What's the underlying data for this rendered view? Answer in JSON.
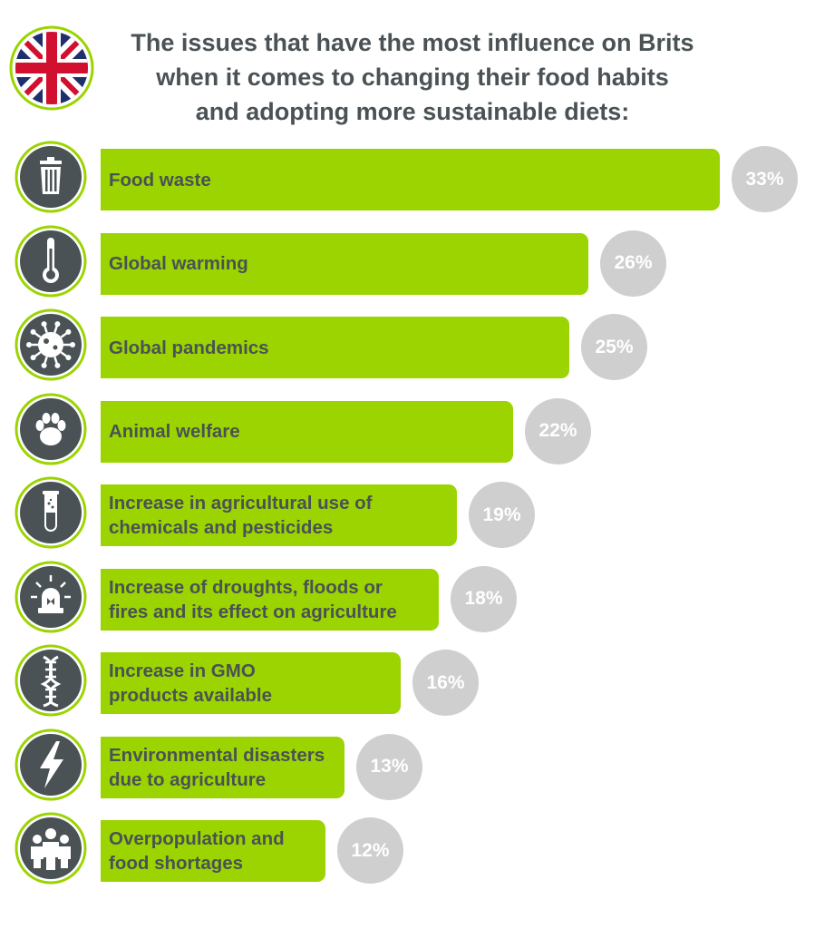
{
  "header": {
    "title_lines": [
      "The issues that have the most influence on Brits",
      "when it comes to changing their food habits",
      "and adopting more sustainable diets:"
    ],
    "flag_icon": "uk-flag-icon"
  },
  "colors": {
    "bar": "#9bd400",
    "text": "#4a5255",
    "badge": "#cfcfcf",
    "icon_fill": "#4a5255",
    "icon_ring": "#9bd400"
  },
  "chart_data": {
    "type": "bar",
    "orientation": "horizontal",
    "title": "The issues that have the most influence on Brits when it comes to changing their food habits and adopting more sustainable diets:",
    "unit": "%",
    "categories": [
      "Food waste",
      "Global warming",
      "Global pandemics",
      "Animal welfare",
      "Increase in agricultural use of chemicals and pesticides",
      "Increase of droughts, floods or fires and its effect on agriculture",
      "Increase in GMO products available",
      "Environmental disasters due to agriculture",
      "Overpopulation and food shortages"
    ],
    "values": [
      33,
      26,
      25,
      22,
      19,
      18,
      16,
      13,
      12
    ],
    "value_labels": [
      "33%",
      "26%",
      "25%",
      "22%",
      "19%",
      "18%",
      "16%",
      "13%",
      "12%"
    ],
    "icons": [
      "trash-icon",
      "thermometer-icon",
      "virus-icon",
      "paw-icon",
      "test-tube-icon",
      "siren-icon",
      "dna-icon",
      "lightning-icon",
      "crowd-icon"
    ],
    "label_lines": [
      [
        "Food waste"
      ],
      [
        "Global warming"
      ],
      [
        "Global pandemics"
      ],
      [
        "Animal welfare"
      ],
      [
        "Increase in agricultural use of",
        "chemicals and pesticides"
      ],
      [
        "Increase of droughts, floods or",
        "fires and its effect on agriculture"
      ],
      [
        "Increase in GMO",
        "products available"
      ],
      [
        "Environmental disasters",
        "due to agriculture"
      ],
      [
        "Overpopulation and",
        "food shortages"
      ]
    ],
    "xlim": [
      0,
      33
    ],
    "grid": false,
    "legend": "none"
  }
}
